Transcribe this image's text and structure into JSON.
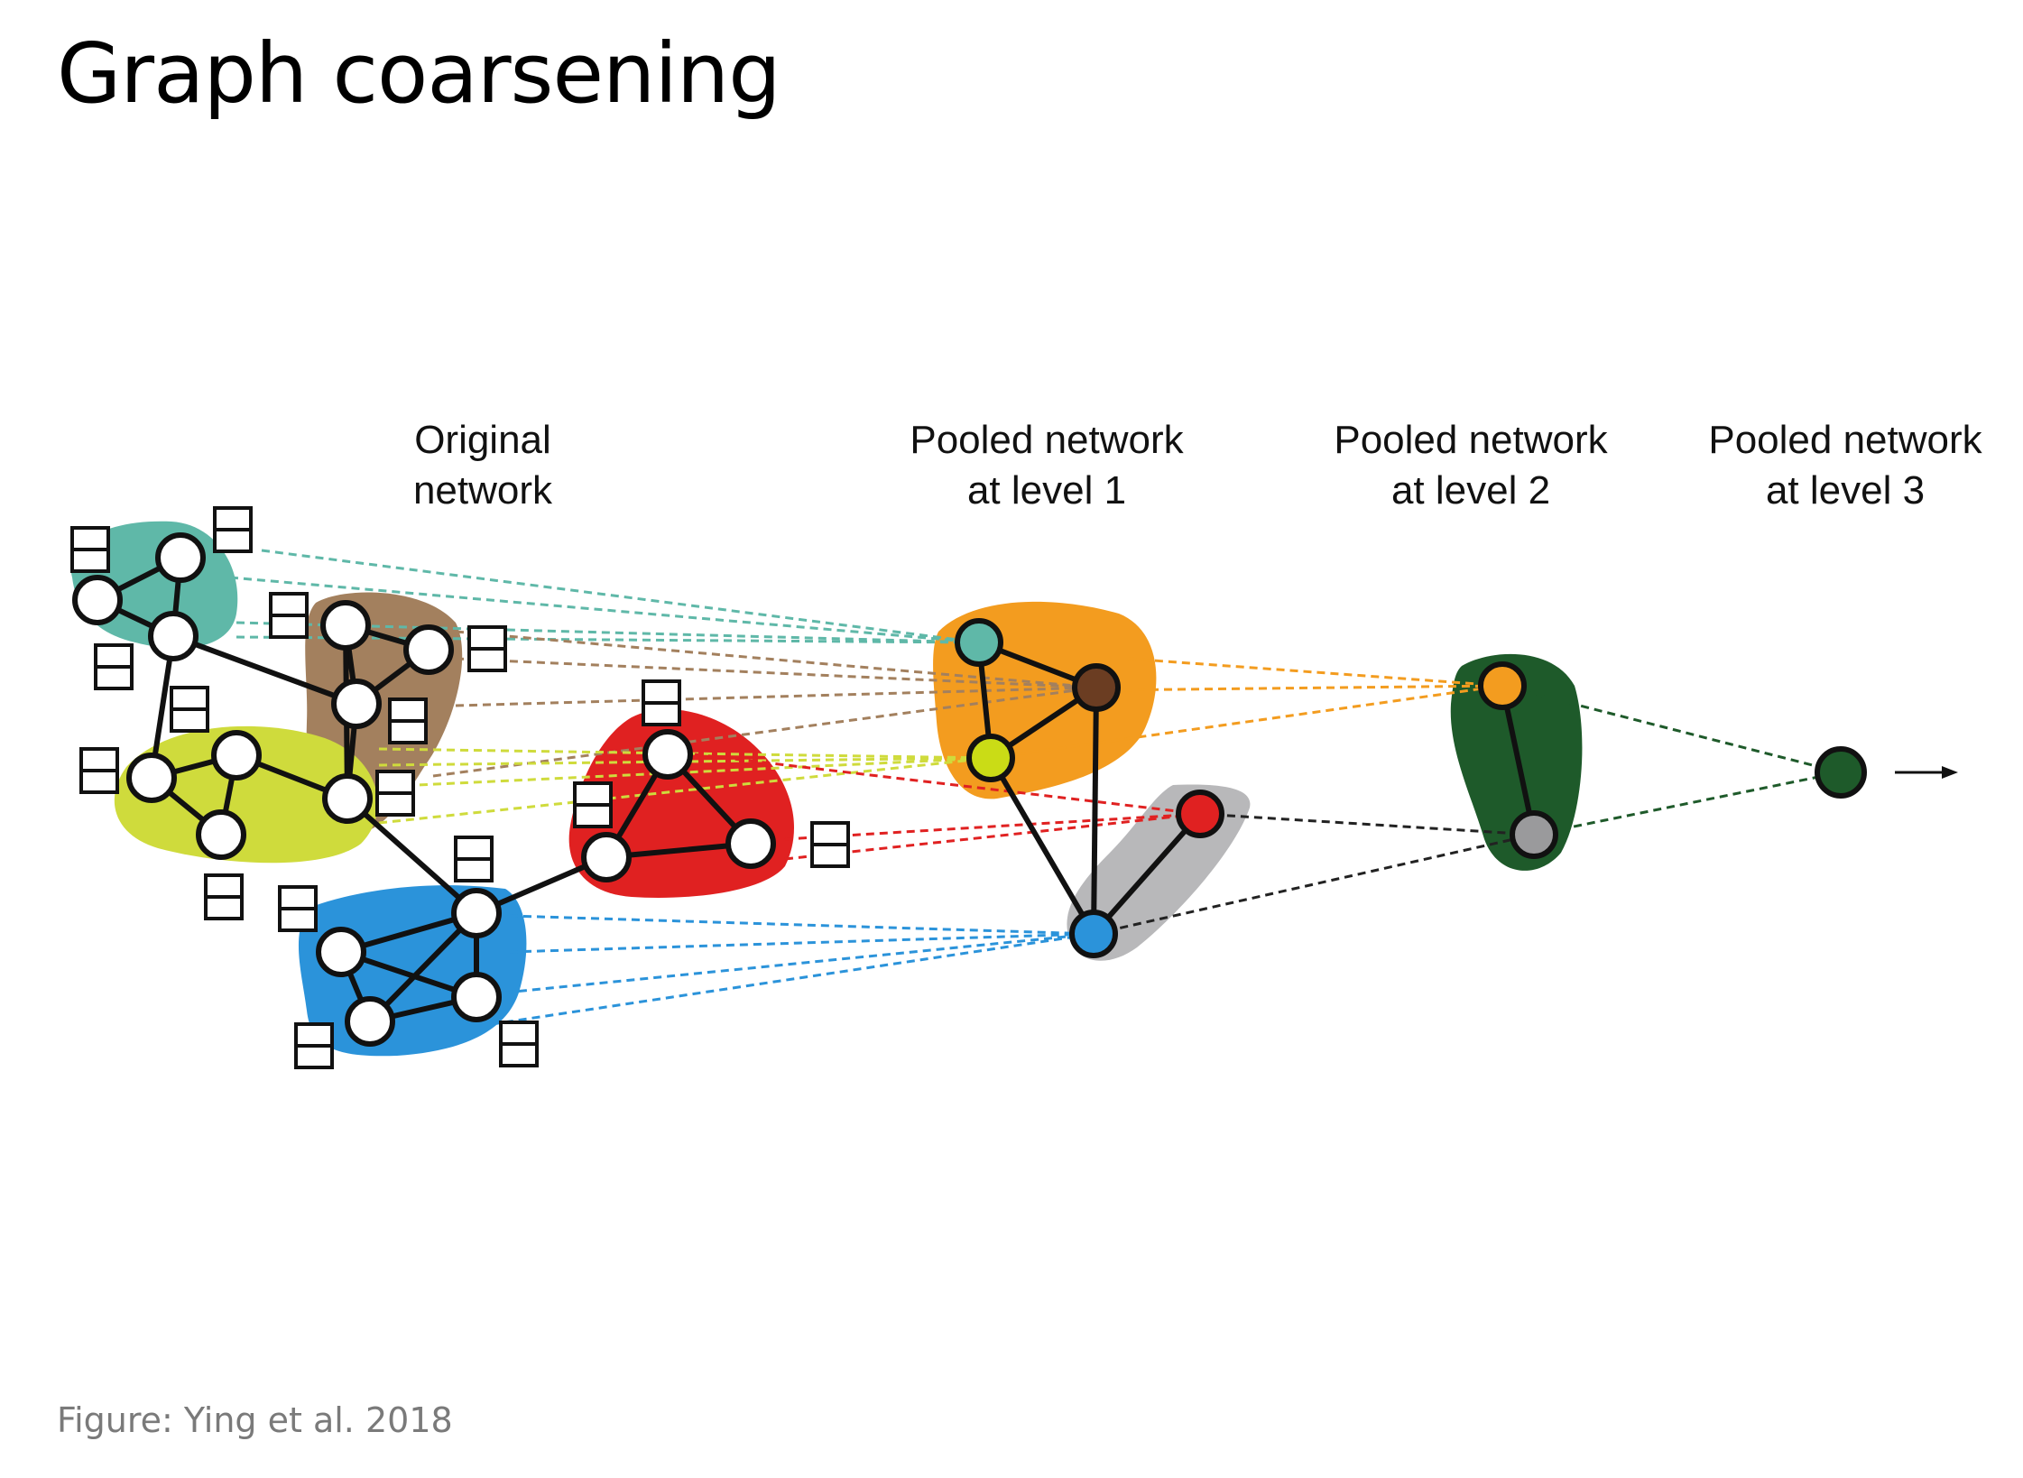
{
  "slide": {
    "title": "Graph coarsening",
    "caption": "Figure: Ying et al. 2018"
  },
  "labels": {
    "original": [
      "Original",
      "network"
    ],
    "level1": [
      "Pooled network",
      "at level 1"
    ],
    "level2": [
      "Pooled network",
      "at level 2"
    ],
    "level3": [
      "Pooled network",
      "at level 3"
    ]
  },
  "colors": {
    "teal": "#5fb8a8",
    "brown": "#a3805e",
    "yellow_green": "#cfdb3c",
    "red": "#e02121",
    "blue": "#2b93da",
    "orange": "#f39c1f",
    "gray": "#b8b8ba",
    "dark_green": "#1e5a2a",
    "node_brown": "#6b3d22",
    "node_yellow": "#cadc16",
    "node_gray": "#9a9a9c",
    "edge": "#111111"
  },
  "arrow_icon": "right-arrow-icon"
}
